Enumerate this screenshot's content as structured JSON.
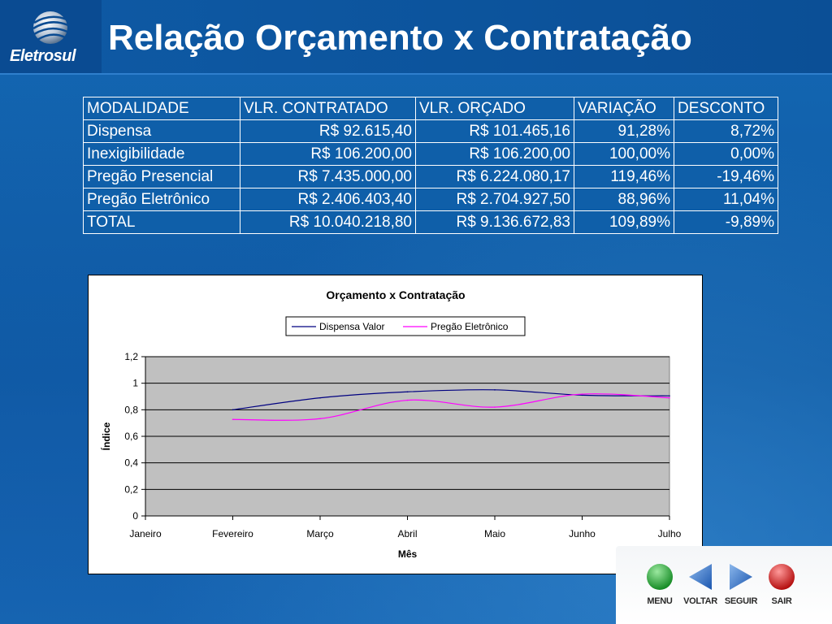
{
  "header": {
    "logo_text": "Eletrosul",
    "title": "Relação Orçamento x Contratação"
  },
  "table": {
    "columns": [
      "MODALIDADE",
      "VLR. CONTRATADO",
      "VLR. ORÇADO",
      "VARIAÇÃO",
      "DESCONTO"
    ],
    "rows": [
      [
        "Dispensa",
        "R$ 92.615,40",
        "R$ 101.465,16",
        "91,28%",
        "8,72%"
      ],
      [
        "Inexigibilidade",
        "R$ 106.200,00",
        "R$ 106.200,00",
        "100,00%",
        "0,00%"
      ],
      [
        "Pregão Presencial",
        "R$ 7.435.000,00",
        "R$ 6.224.080,17",
        "119,46%",
        "-19,46%"
      ],
      [
        "Pregão Eletrônico",
        "R$ 2.406.403,40",
        "R$ 2.704.927,50",
        "88,96%",
        "11,04%"
      ],
      [
        "TOTAL",
        "R$ 10.040.218,80",
        "R$ 9.136.672,83",
        "109,89%",
        "-9,89%"
      ]
    ]
  },
  "chart_data": {
    "type": "line",
    "title": "Orçamento x Contratação",
    "xlabel": "Mês",
    "ylabel": "Índice",
    "categories": [
      "Janeiro",
      "Fevereiro",
      "Março",
      "Abril",
      "Maio",
      "Junho",
      "Julho"
    ],
    "ylim": [
      0,
      1.2
    ],
    "yticks": [
      "0",
      "0,2",
      "0,4",
      "0,6",
      "0,8",
      "1",
      "1,2"
    ],
    "grid": true,
    "legend_position": "top",
    "series": [
      {
        "name": "Dispensa Valor",
        "color": "#000080",
        "values": [
          null,
          0.8,
          0.89,
          0.935,
          0.95,
          0.91,
          0.905
        ]
      },
      {
        "name": "Pregão Eletrônico",
        "color": "#ff00ff",
        "values": [
          null,
          0.727,
          0.733,
          0.872,
          0.82,
          0.918,
          0.89
        ]
      }
    ]
  },
  "nav": {
    "buttons": [
      {
        "label": "MENU",
        "icon": "green-circle-icon",
        "color": "#1e9e2e"
      },
      {
        "label": "VOLTAR",
        "icon": "back-triangle-icon",
        "color": "#1f5fb8"
      },
      {
        "label": "SEGUIR",
        "icon": "forward-triangle-icon",
        "color": "#1f5fb8"
      },
      {
        "label": "SAIR",
        "icon": "red-circle-icon",
        "color": "#d11b1b"
      }
    ]
  }
}
